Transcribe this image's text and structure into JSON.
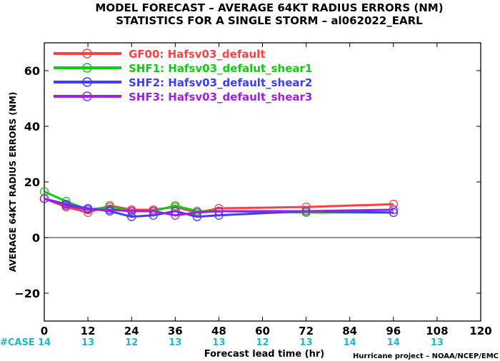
{
  "chart_data": {
    "type": "line",
    "title": "MODEL FORECAST – AVERAGE 64KT RADIUS ERRORS (NM)",
    "subtitle": "STATISTICS FOR A SINGLE STORM – al062022_EARL",
    "xlabel": "Forecast lead time (hr)",
    "ylabel": "AVERAGE 64KT RADIUS ERRORS (NM)",
    "xlim": [
      0,
      120
    ],
    "ylim": [
      -30,
      70
    ],
    "xticks": [
      "0",
      "12",
      "24",
      "36",
      "48",
      "60",
      "72",
      "84",
      "96",
      "108",
      "120"
    ],
    "yticks": [
      "60",
      "40",
      "20",
      "0",
      "−20"
    ],
    "grid": false,
    "legend_position": "top-left",
    "case_label": "#CASE",
    "case_counts": [
      {
        "x": 0,
        "n": "14"
      },
      {
        "x": 12,
        "n": "13"
      },
      {
        "x": 24,
        "n": "12"
      },
      {
        "x": 36,
        "n": "13"
      },
      {
        "x": 48,
        "n": "13"
      },
      {
        "x": 60,
        "n": "12"
      },
      {
        "x": 72,
        "n": "13"
      },
      {
        "x": 84,
        "n": "14"
      },
      {
        "x": 96,
        "n": "14"
      },
      {
        "x": 108,
        "n": "13"
      }
    ],
    "credit": "Hurricane project – NOAA/NCEP/EMC",
    "x": [
      0,
      6,
      12,
      18,
      24,
      30,
      36,
      42,
      48,
      72,
      96
    ],
    "series": [
      {
        "name": "GF00: Hafsv03_default",
        "color": "#ff4040",
        "values": [
          14,
          11,
          9,
          11.5,
          10,
          10,
          11,
          9,
          10.5,
          11,
          12
        ]
      },
      {
        "name": "SHF1: Hafsv03_defalut_shear1",
        "color": "#10cc10",
        "values": [
          16.5,
          13,
          10,
          11,
          9.5,
          9.5,
          11.5,
          9.5,
          9.5,
          9,
          9
        ]
      },
      {
        "name": "SHF2: Hafsv03_default_shear2",
        "color": "#3d3dff",
        "values": [
          14,
          12,
          10.5,
          9.5,
          7.5,
          8,
          9.5,
          7.5,
          8,
          9.5,
          9
        ]
      },
      {
        "name": "SHF3: Hafsv03_default_shear3",
        "color": "#a020e0",
        "values": [
          14,
          11.5,
          10,
          10,
          9.5,
          9.5,
          8,
          9,
          9.5,
          9.5,
          10
        ]
      }
    ],
    "zero_line": 0
  }
}
